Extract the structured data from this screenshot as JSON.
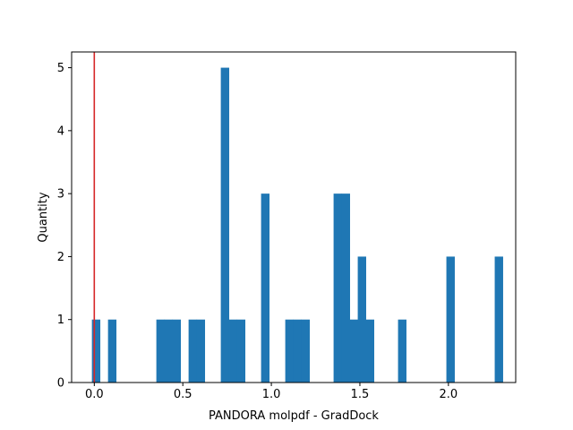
{
  "chart_data": {
    "type": "bar",
    "title": "",
    "xlabel": "PANDORA molpdf - GradDock",
    "ylabel": "Quantity",
    "xlim": [
      -0.128,
      2.38
    ],
    "ylim": [
      0,
      5.25
    ],
    "x_ticks": [
      0.0,
      0.5,
      1.0,
      1.5,
      2.0
    ],
    "x_tick_labels": [
      "0.0",
      "0.5",
      "1.0",
      "1.5",
      "2.0"
    ],
    "y_ticks": [
      0,
      1,
      2,
      3,
      4,
      5
    ],
    "y_tick_labels": [
      "0",
      "1",
      "2",
      "3",
      "4",
      "5"
    ],
    "bin_start": -0.0135,
    "bin_width": 0.0455,
    "values": [
      1,
      0,
      1,
      0,
      0,
      0,
      0,
      0,
      1,
      1,
      1,
      0,
      1,
      1,
      0,
      0,
      5,
      1,
      1,
      0,
      0,
      3,
      0,
      0,
      1,
      1,
      1,
      0,
      0,
      0,
      3,
      3,
      1,
      2,
      1,
      0,
      0,
      0,
      1,
      0,
      0,
      0,
      0,
      0,
      2,
      0,
      0,
      0,
      0,
      0,
      2
    ],
    "bar_color": "#1f77b4",
    "reference_line": {
      "x": 0.0,
      "color": "#d62728"
    },
    "grid": false
  }
}
